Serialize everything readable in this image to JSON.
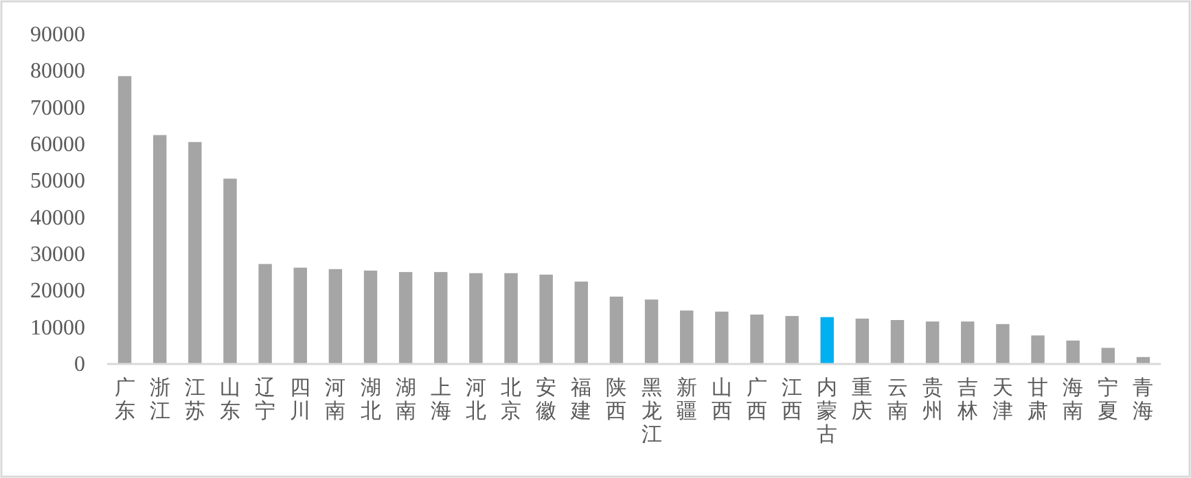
{
  "chart_data": {
    "type": "bar",
    "categories": [
      "广东",
      "浙江",
      "江苏",
      "山东",
      "辽宁",
      "四川",
      "河南",
      "湖北",
      "湖南",
      "上海",
      "河北",
      "北京",
      "安徽",
      "福建",
      "陕西",
      "黑龙江",
      "新疆",
      "山西",
      "广西",
      "江西",
      "内蒙古",
      "重庆",
      "云南",
      "贵州",
      "吉林",
      "天津",
      "甘肃",
      "海南",
      "宁夏",
      "青海"
    ],
    "values": [
      78600,
      62500,
      60600,
      50600,
      27300,
      26300,
      25900,
      25500,
      25100,
      25100,
      24800,
      24800,
      24400,
      22500,
      18400,
      17600,
      14600,
      14300,
      13500,
      13100,
      12800,
      12400,
      12000,
      11600,
      11600,
      10900,
      7800,
      6400,
      4400,
      1900
    ],
    "colors": [
      "#a5a5a5",
      "#a5a5a5",
      "#a5a5a5",
      "#a5a5a5",
      "#a5a5a5",
      "#a5a5a5",
      "#a5a5a5",
      "#a5a5a5",
      "#a5a5a5",
      "#a5a5a5",
      "#a5a5a5",
      "#a5a5a5",
      "#a5a5a5",
      "#a5a5a5",
      "#a5a5a5",
      "#a5a5a5",
      "#a5a5a5",
      "#a5a5a5",
      "#a5a5a5",
      "#a5a5a5",
      "#00b0f0",
      "#a5a5a5",
      "#a5a5a5",
      "#a5a5a5",
      "#a5a5a5",
      "#a5a5a5",
      "#a5a5a5",
      "#a5a5a5",
      "#a5a5a5",
      "#a5a5a5"
    ],
    "ylim": [
      0,
      90000
    ],
    "yticks": [
      0,
      10000,
      20000,
      30000,
      40000,
      50000,
      60000,
      70000,
      80000,
      90000
    ],
    "grid": false
  }
}
